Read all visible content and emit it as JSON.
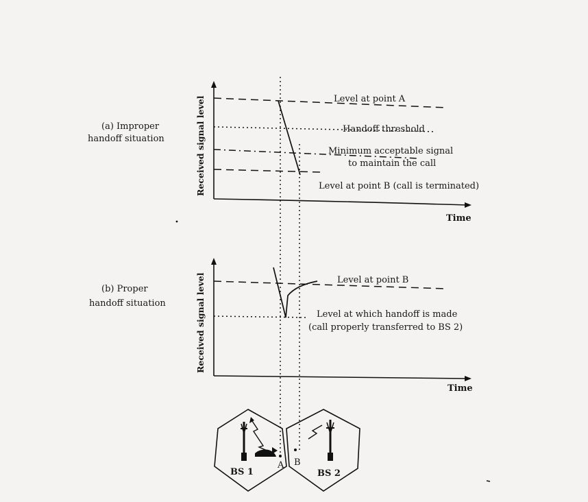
{
  "panel_a": {
    "caption_line1": "(a) Improper",
    "caption_line2": "handoff situation",
    "ylabel": "Received signal level",
    "xlabel": "Time",
    "level_a": "Level at point A",
    "handoff_threshold": "Handoff threshold",
    "min_signal_line1": "Minimum acceptable signal",
    "min_signal_line2": "to maintain the call",
    "level_b": "Level at point B (call is terminated)"
  },
  "panel_b": {
    "caption_line1": "(b) Proper",
    "caption_line2": "handoff situation",
    "ylabel": "Received signal level",
    "xlabel": "Time",
    "level_b": "Level at point B",
    "handoff_line1": "Level at which handoff is made",
    "handoff_line2": "(call properly transferred to BS 2)"
  },
  "cells": {
    "bs1": "BS 1",
    "bs2": "BS 2",
    "point_a": "A",
    "point_b": "B"
  }
}
